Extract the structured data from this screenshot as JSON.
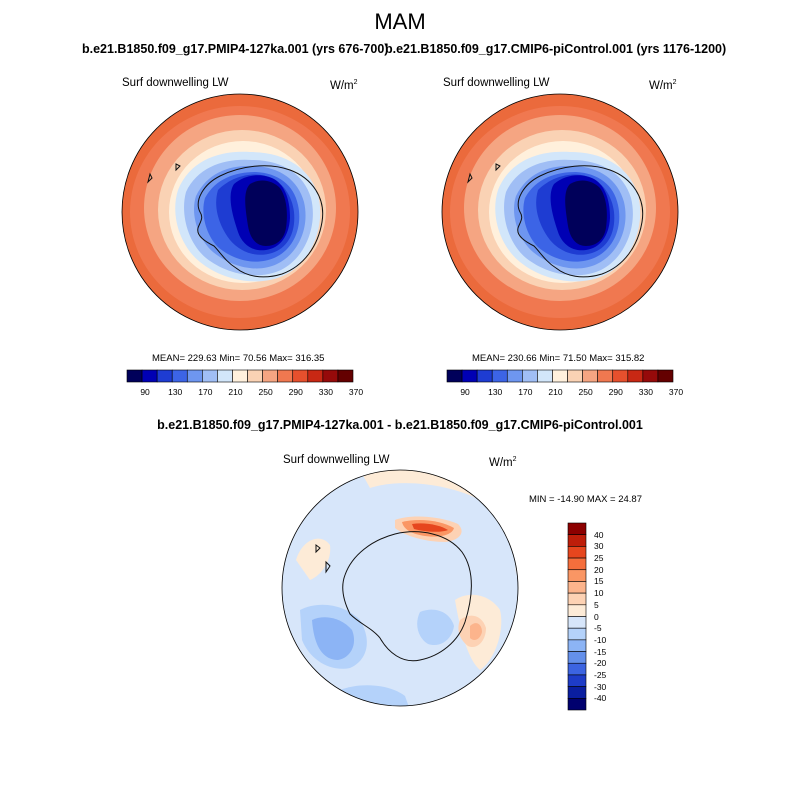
{
  "title": "MAM",
  "panels": [
    {
      "run_title": "b.e21.B1850.f09_g17.PMIP4-127ka.001 (yrs 676-700)",
      "field_label": "Surf downwelling LW",
      "units_base": "W/m",
      "units_exp": "2",
      "stats": "MEAN= 229.63  Min=  70.56  Max= 316.35"
    },
    {
      "run_title": "b.e21.B1850.f09_g17.CMIP6-piControl.001 (yrs 1176-1200)",
      "field_label": "Surf downwelling LW",
      "units_base": "W/m",
      "units_exp": "2",
      "stats": "MEAN= 230.66  Min=  71.50  Max= 315.82"
    }
  ],
  "colorbar_top": {
    "labels": [
      "90",
      "130",
      "170",
      "210",
      "250",
      "290",
      "330",
      "370"
    ],
    "colors": [
      "#00005a",
      "#0000b4",
      "#1e3cd2",
      "#3c64e6",
      "#6e96f0",
      "#a0bef5",
      "#d2e6fa",
      "#fff0dc",
      "#fad2b4",
      "#f5a582",
      "#f07850",
      "#e6502d",
      "#c82814",
      "#960a0a",
      "#640000"
    ]
  },
  "diff": {
    "title": "b.e21.B1850.f09_g17.PMIP4-127ka.001 - b.e21.B1850.f09_g17.CMIP6-piControl.001",
    "field_label": "Surf downwelling LW",
    "units_base": "W/m",
    "units_exp": "2",
    "stats": "MIN = -14.90 MAX =  24.87",
    "colorbar": {
      "labels": [
        "40",
        "30",
        "25",
        "20",
        "15",
        "10",
        "5",
        "0",
        "-5",
        "-10",
        "-15",
        "-20",
        "-25",
        "-30",
        "-40"
      ],
      "colors": [
        "#8c0000",
        "#be1e0a",
        "#e6461e",
        "#f56e3c",
        "#fa9664",
        "#fcb48c",
        "#fdd2b4",
        "#fdebd7",
        "#d7e6fa",
        "#b4d2fa",
        "#8cb4f5",
        "#6490eb",
        "#3c64e1",
        "#1e3cc8",
        "#0a1ea0",
        "#00006e"
      ]
    }
  }
}
